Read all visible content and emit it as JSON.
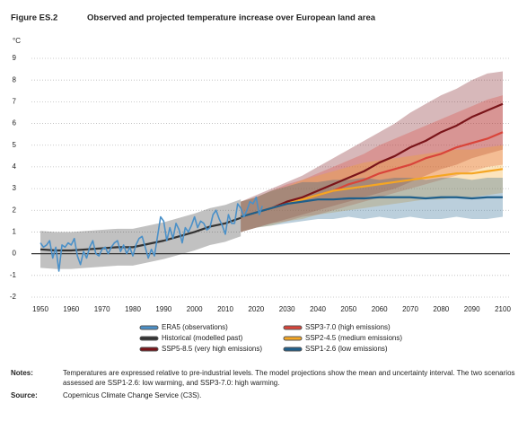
{
  "chart_data": {
    "type": "line",
    "figure_label": "Figure ES.2",
    "title": "Observed and projected temperature increase over European land area",
    "y_label": "°C",
    "xlim": [
      1950,
      2100
    ],
    "xticks": [
      1950,
      1960,
      1970,
      1980,
      1990,
      2000,
      2010,
      2020,
      2030,
      2040,
      2050,
      2060,
      2070,
      2080,
      2090,
      2100
    ],
    "ylim": [
      -2,
      9
    ],
    "yticks": [
      -2,
      -1,
      0,
      1,
      2,
      3,
      4,
      5,
      6,
      7,
      8,
      9
    ],
    "grid": true,
    "series": [
      {
        "name": "SSP5-8.5 (very high emissions)",
        "color": "#7a1419",
        "x": [
          2015,
          2020,
          2025,
          2030,
          2035,
          2040,
          2045,
          2050,
          2055,
          2060,
          2065,
          2070,
          2075,
          2080,
          2085,
          2090,
          2095,
          2100
        ],
        "values": [
          1.7,
          1.9,
          2.1,
          2.4,
          2.6,
          2.9,
          3.2,
          3.5,
          3.8,
          4.2,
          4.5,
          4.9,
          5.2,
          5.6,
          5.9,
          6.3,
          6.6,
          6.9
        ],
        "lower": [
          1.0,
          1.2,
          1.4,
          1.6,
          1.8,
          2.0,
          2.2,
          2.4,
          2.6,
          2.8,
          3.0,
          3.3,
          3.6,
          3.9,
          4.1,
          4.4,
          4.6,
          4.8
        ],
        "upper": [
          2.4,
          2.7,
          3.0,
          3.3,
          3.6,
          4.0,
          4.4,
          4.8,
          5.2,
          5.6,
          6.0,
          6.5,
          6.9,
          7.3,
          7.6,
          8.0,
          8.3,
          8.4
        ]
      },
      {
        "name": "SSP3-7.0 (high emissions)",
        "color": "#d9443a",
        "x": [
          2015,
          2020,
          2025,
          2030,
          2035,
          2040,
          2045,
          2050,
          2055,
          2060,
          2065,
          2070,
          2075,
          2080,
          2085,
          2090,
          2095,
          2100
        ],
        "values": [
          1.7,
          1.9,
          2.1,
          2.3,
          2.5,
          2.7,
          2.9,
          3.2,
          3.4,
          3.7,
          3.9,
          4.1,
          4.4,
          4.6,
          4.9,
          5.1,
          5.3,
          5.6
        ],
        "lower": [
          1.0,
          1.2,
          1.4,
          1.5,
          1.7,
          1.8,
          2.0,
          2.2,
          2.4,
          2.6,
          2.8,
          3.0,
          3.2,
          3.4,
          3.6,
          3.8,
          4.0,
          4.1
        ],
        "upper": [
          2.4,
          2.6,
          2.9,
          3.2,
          3.4,
          3.7,
          4.0,
          4.3,
          4.6,
          5.0,
          5.3,
          5.6,
          5.9,
          6.2,
          6.5,
          6.8,
          7.1,
          7.3
        ]
      },
      {
        "name": "SSP2-4.5 (medium emissions)",
        "color": "#f5a623",
        "x": [
          2015,
          2020,
          2025,
          2030,
          2035,
          2040,
          2045,
          2050,
          2055,
          2060,
          2065,
          2070,
          2075,
          2080,
          2085,
          2090,
          2095,
          2100
        ],
        "values": [
          1.7,
          1.9,
          2.1,
          2.3,
          2.5,
          2.7,
          2.9,
          3.0,
          3.1,
          3.2,
          3.3,
          3.4,
          3.5,
          3.6,
          3.7,
          3.7,
          3.8,
          3.9
        ],
        "lower": [
          1.0,
          1.2,
          1.3,
          1.5,
          1.6,
          1.8,
          1.9,
          2.0,
          2.1,
          2.2,
          2.3,
          2.4,
          2.5,
          2.5,
          2.6,
          2.6,
          2.7,
          2.8
        ],
        "upper": [
          2.4,
          2.6,
          2.9,
          3.1,
          3.4,
          3.6,
          3.8,
          4.0,
          4.2,
          4.3,
          4.4,
          4.5,
          4.6,
          4.7,
          4.8,
          4.8,
          4.9,
          5.0
        ]
      },
      {
        "name": "SSP1-2.6 (low emissions)",
        "color": "#1f5f8b",
        "x": [
          2015,
          2020,
          2025,
          2030,
          2035,
          2040,
          2045,
          2050,
          2055,
          2060,
          2065,
          2070,
          2075,
          2080,
          2085,
          2090,
          2095,
          2100
        ],
        "values": [
          1.7,
          1.9,
          2.1,
          2.3,
          2.4,
          2.5,
          2.5,
          2.55,
          2.55,
          2.6,
          2.6,
          2.6,
          2.55,
          2.6,
          2.6,
          2.55,
          2.6,
          2.6
        ],
        "lower": [
          1.0,
          1.2,
          1.3,
          1.4,
          1.5,
          1.6,
          1.6,
          1.7,
          1.6,
          1.7,
          1.6,
          1.7,
          1.6,
          1.6,
          1.7,
          1.6,
          1.6,
          1.7
        ],
        "upper": [
          2.4,
          2.6,
          2.9,
          3.1,
          3.3,
          3.3,
          3.4,
          3.4,
          3.5,
          3.4,
          3.5,
          3.5,
          3.4,
          3.5,
          3.5,
          3.4,
          3.5,
          3.5
        ]
      },
      {
        "name": "Historical (modelled past)",
        "color": "#333333",
        "x": [
          1950,
          1955,
          1960,
          1965,
          1970,
          1975,
          1980,
          1985,
          1990,
          1995,
          2000,
          2005,
          2010,
          2015
        ],
        "values": [
          0.2,
          0.15,
          0.15,
          0.2,
          0.25,
          0.3,
          0.3,
          0.45,
          0.6,
          0.8,
          1.0,
          1.25,
          1.4,
          1.65
        ],
        "lower": [
          -0.65,
          -0.7,
          -0.7,
          -0.65,
          -0.6,
          -0.55,
          -0.55,
          -0.4,
          -0.25,
          -0.05,
          0.15,
          0.4,
          0.55,
          0.8
        ],
        "upper": [
          1.05,
          1.0,
          1.0,
          1.05,
          1.1,
          1.15,
          1.15,
          1.3,
          1.45,
          1.65,
          1.85,
          2.1,
          2.25,
          2.5
        ]
      },
      {
        "name": "ERA5 (observations)",
        "color": "#4a90c8",
        "x": [
          1950,
          1951,
          1952,
          1953,
          1954,
          1955,
          1956,
          1957,
          1958,
          1959,
          1960,
          1961,
          1962,
          1963,
          1964,
          1965,
          1966,
          1967,
          1968,
          1969,
          1970,
          1971,
          1972,
          1973,
          1974,
          1975,
          1976,
          1977,
          1978,
          1979,
          1980,
          1981,
          1982,
          1983,
          1984,
          1985,
          1986,
          1987,
          1988,
          1989,
          1990,
          1991,
          1992,
          1993,
          1994,
          1995,
          1996,
          1997,
          1998,
          1999,
          2000,
          2001,
          2002,
          2003,
          2004,
          2005,
          2006,
          2007,
          2008,
          2009,
          2010,
          2011,
          2012,
          2013,
          2014,
          2015,
          2016,
          2017,
          2018,
          2019,
          2020,
          2021,
          2022
        ],
        "values": [
          0.5,
          0.3,
          0.4,
          0.6,
          -0.2,
          0.3,
          -0.8,
          0.4,
          0.3,
          0.5,
          0.4,
          0.7,
          -0.1,
          -0.5,
          0.1,
          -0.2,
          0.3,
          0.6,
          0.0,
          -0.1,
          0.2,
          0.3,
          0.0,
          0.3,
          0.5,
          0.6,
          0.1,
          0.4,
          0.0,
          0.3,
          -0.1,
          0.4,
          0.7,
          0.8,
          0.3,
          -0.2,
          0.2,
          -0.1,
          0.8,
          1.7,
          1.5,
          0.6,
          1.2,
          0.7,
          1.4,
          1.1,
          0.5,
          1.2,
          1.0,
          1.3,
          1.7,
          1.2,
          1.5,
          1.4,
          1.1,
          1.2,
          1.8,
          2.0,
          1.6,
          1.3,
          0.9,
          1.8,
          1.4,
          1.4,
          2.3,
          2.1,
          1.7,
          2.0,
          2.4,
          2.3,
          2.6,
          1.8,
          2.2
        ]
      }
    ],
    "legend": [
      5,
      4,
      0,
      1,
      2,
      3
    ]
  },
  "notes": {
    "label": "Notes:",
    "lines": [
      "Temperatures are expressed relative to pre-industrial levels. The model projections show the mean and uncertainty interval. The two scenarios",
      "assessed are SSP1-2.6: low warming, and SSP3-7.0: high warming."
    ]
  },
  "source": {
    "label": "Source:",
    "text": "Copernicus Climate Change Service (C3S)."
  }
}
